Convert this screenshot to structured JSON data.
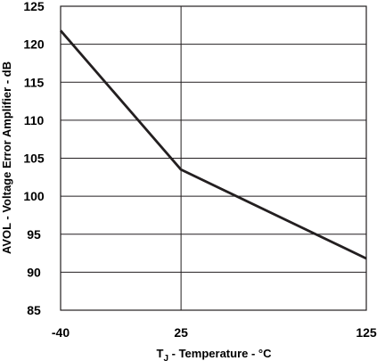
{
  "chart_data": {
    "type": "line",
    "title": "",
    "xlabel": "T",
    "xlabel_subscript": "J",
    "xlabel_suffix": " - Temperature - °C",
    "ylabel": "AVOL - Voltage Error Amplifier - dB",
    "x_ticks": [
      "-40",
      "25",
      "125"
    ],
    "y_ticks": [
      "85",
      "90",
      "95",
      "100",
      "105",
      "110",
      "115",
      "120",
      "125"
    ],
    "xlim": [
      -40,
      125
    ],
    "ylim": [
      85,
      125
    ],
    "x_tick_values": [
      -40,
      25,
      125
    ],
    "y_tick_values": [
      85,
      90,
      95,
      100,
      105,
      110,
      115,
      120,
      125
    ],
    "grid": true,
    "series": [
      {
        "x": [
          -40,
          25,
          125
        ],
        "y": [
          121.8,
          103.5,
          91.8
        ]
      }
    ],
    "colors": {
      "line": "#231f20",
      "grid": "#231f20",
      "background": "#ffffff"
    }
  }
}
